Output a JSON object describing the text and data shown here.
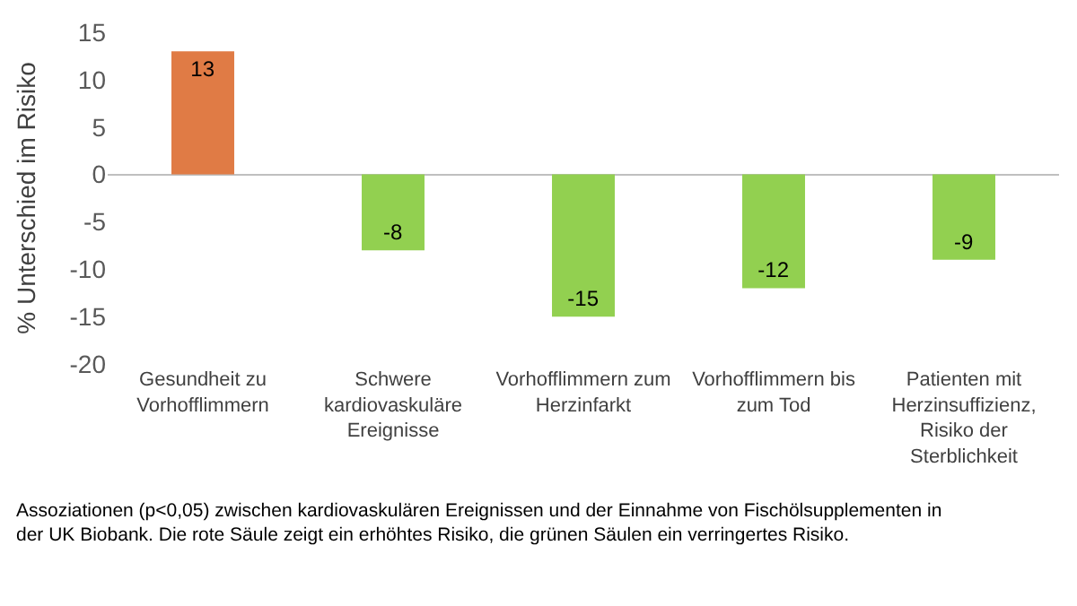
{
  "chart_data": {
    "type": "bar",
    "ylabel": "% Unterschied im Risiko",
    "categories": [
      "Gesundheit zu Vorhofflimmern",
      "Schwere kardiovaskuläre Ereignisse",
      "Vorhofflimmern zum Herzinfarkt",
      "Vorhofflimmern bis zum Tod",
      "Patienten mit Herzinsuffizienz, Risiko der Sterblichkeit"
    ],
    "values": [
      13,
      -8,
      -15,
      -12,
      -9
    ],
    "colors": [
      "#e07b45",
      "#92d050",
      "#92d050",
      "#92d050",
      "#92d050"
    ],
    "data_labels": true,
    "ylim": [
      -20,
      15
    ],
    "yticks": [
      -20,
      -15,
      -10,
      -5,
      0,
      5,
      10,
      15
    ],
    "legend": false,
    "annotations": [
      "Assoziationen (p<0,05) zwischen kardiovaskulären Ereignissen und der Einnahme von Fischölsupplementen in der UK Biobank. Die rote Säule zeigt ein erhöhtes Risiko, die grünen Säulen ein verringertes Risiko."
    ]
  }
}
